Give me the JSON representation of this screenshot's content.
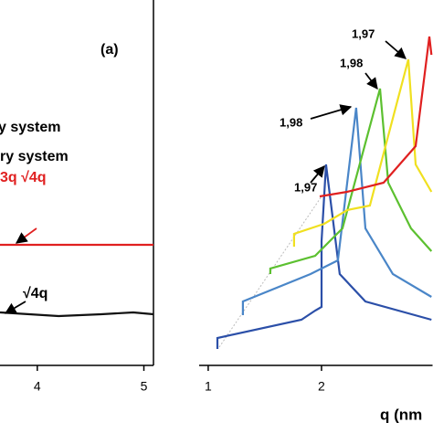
{
  "chart_data": [
    {
      "type": "line",
      "xlim": [
        3.65,
        5.09
      ],
      "ylim": [
        0,
        10
      ],
      "xticks": [
        4,
        5
      ],
      "series": [
        {
          "color": "#e02020",
          "x": [
            3.65,
            5.09
          ],
          "values": [
            3.3,
            3.3
          ]
        },
        {
          "color": "#111111",
          "x": [
            3.65,
            4.2,
            4.6,
            4.9,
            5.09
          ],
          "values": [
            1.45,
            1.35,
            1.4,
            1.45,
            1.4
          ]
        }
      ],
      "annotations": [
        "(a)",
        "y system",
        "ry system",
        "3q √4q",
        "√4q"
      ]
    },
    {
      "type": "line",
      "xlabel": "q (nm",
      "xlim": [
        0.92,
        2.98
      ],
      "ylim": [
        0,
        100
      ],
      "xticks": [
        1,
        2
      ],
      "series": [
        {
          "color": "#2b4fa8",
          "x": [
            1.081,
            1.081,
            1.823,
            1.944,
            2.0,
            2.0,
            2.04,
            2.161,
            2.387,
            2.97
          ],
          "values": [
            4.5,
            7.5,
            12.5,
            15,
            16,
            34,
            55,
            25,
            17.5,
            12.5
          ]
        },
        {
          "color": "#4a86c8",
          "x": [
            1.306,
            1.306,
            1.903,
            2.145,
            2.306,
            2.387,
            2.629,
            2.97
          ],
          "values": [
            13.75,
            17.5,
            25,
            28.75,
            70.5,
            37.5,
            25,
            18.75
          ]
        },
        {
          "color": "#5cc030",
          "x": [
            1.548,
            1.548,
            1.944,
            2.185,
            2.516,
            2.589,
            2.79,
            2.97
          ],
          "values": [
            25,
            26.5,
            30,
            37.5,
            75.75,
            50,
            37.5,
            31.25
          ]
        },
        {
          "color": "#f0e020",
          "x": [
            1.758,
            1.758,
            2.024,
            2.226,
            2.427,
            2.766,
            2.831,
            2.97
          ],
          "values": [
            32.5,
            36,
            38.75,
            42.5,
            43.75,
            83.75,
            55,
            47.5
          ]
        },
        {
          "color": "#e02020",
          "x": [
            1.984,
            2.226,
            2.548,
            2.831,
            2.952,
            2.97
          ],
          "values": [
            46.25,
            47.5,
            50,
            60,
            90,
            85
          ]
        }
      ],
      "annotations": [
        "1,97",
        "1,98",
        "1,98",
        "1,97"
      ]
    }
  ]
}
